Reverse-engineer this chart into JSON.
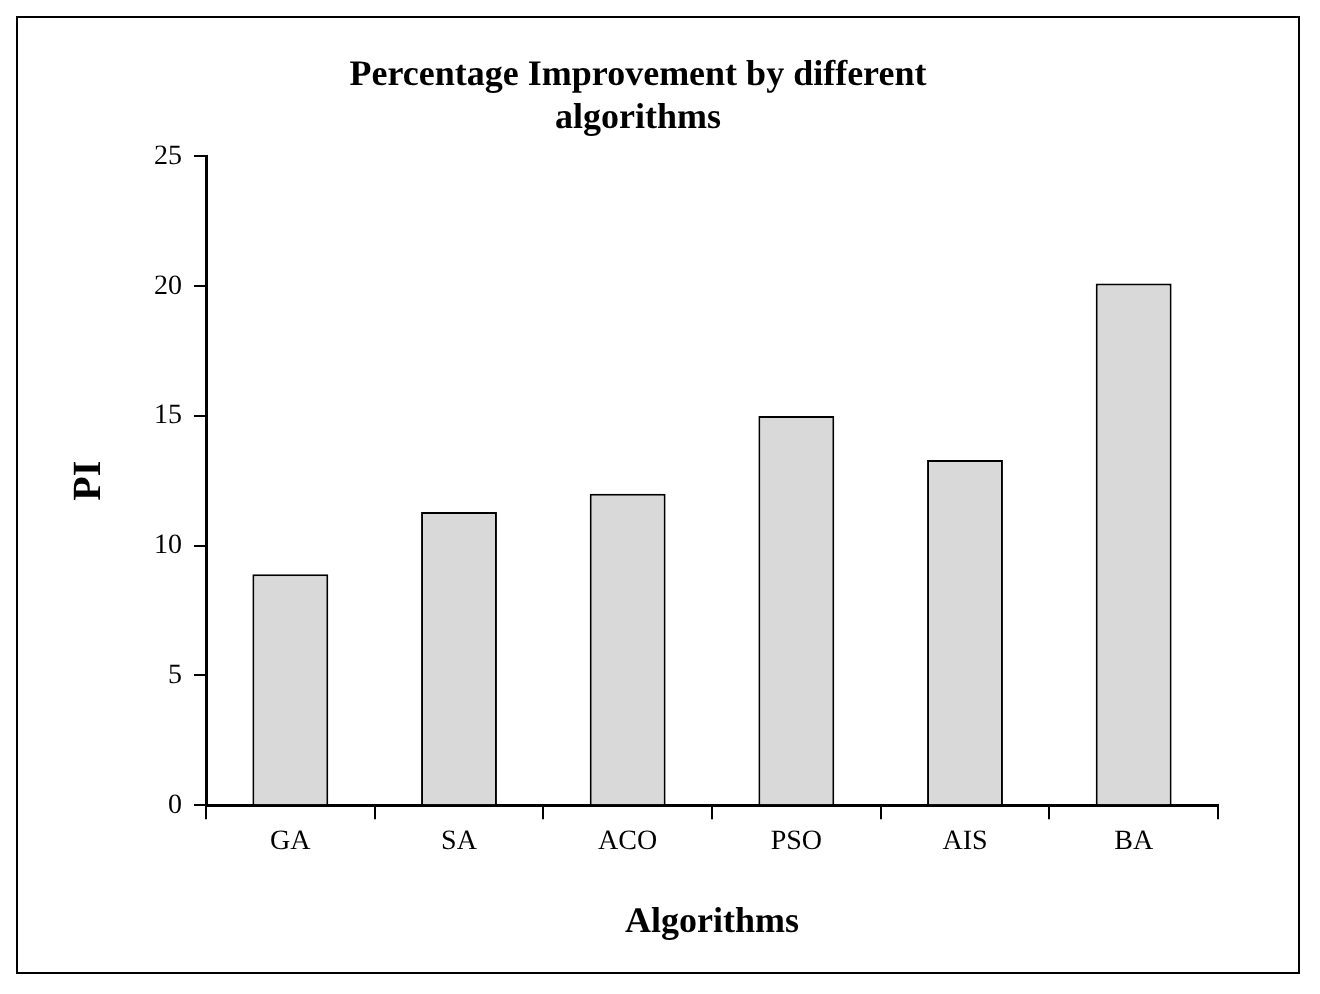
{
  "chart_data": {
    "type": "bar",
    "title": "Percentage Improvement by different algorithms",
    "xlabel": "Algorithms",
    "ylabel": "PI",
    "categories": [
      "GA",
      "SA",
      "ACO",
      "PSO",
      "AIS",
      "BA"
    ],
    "values": [
      8.9,
      11.3,
      12.0,
      15.0,
      13.3,
      20.1
    ],
    "color": "#d9d9d9",
    "ylim": [
      0,
      25
    ],
    "yticks": [
      0,
      5,
      10,
      15,
      20,
      25
    ],
    "grid": false,
    "legend": false
  }
}
